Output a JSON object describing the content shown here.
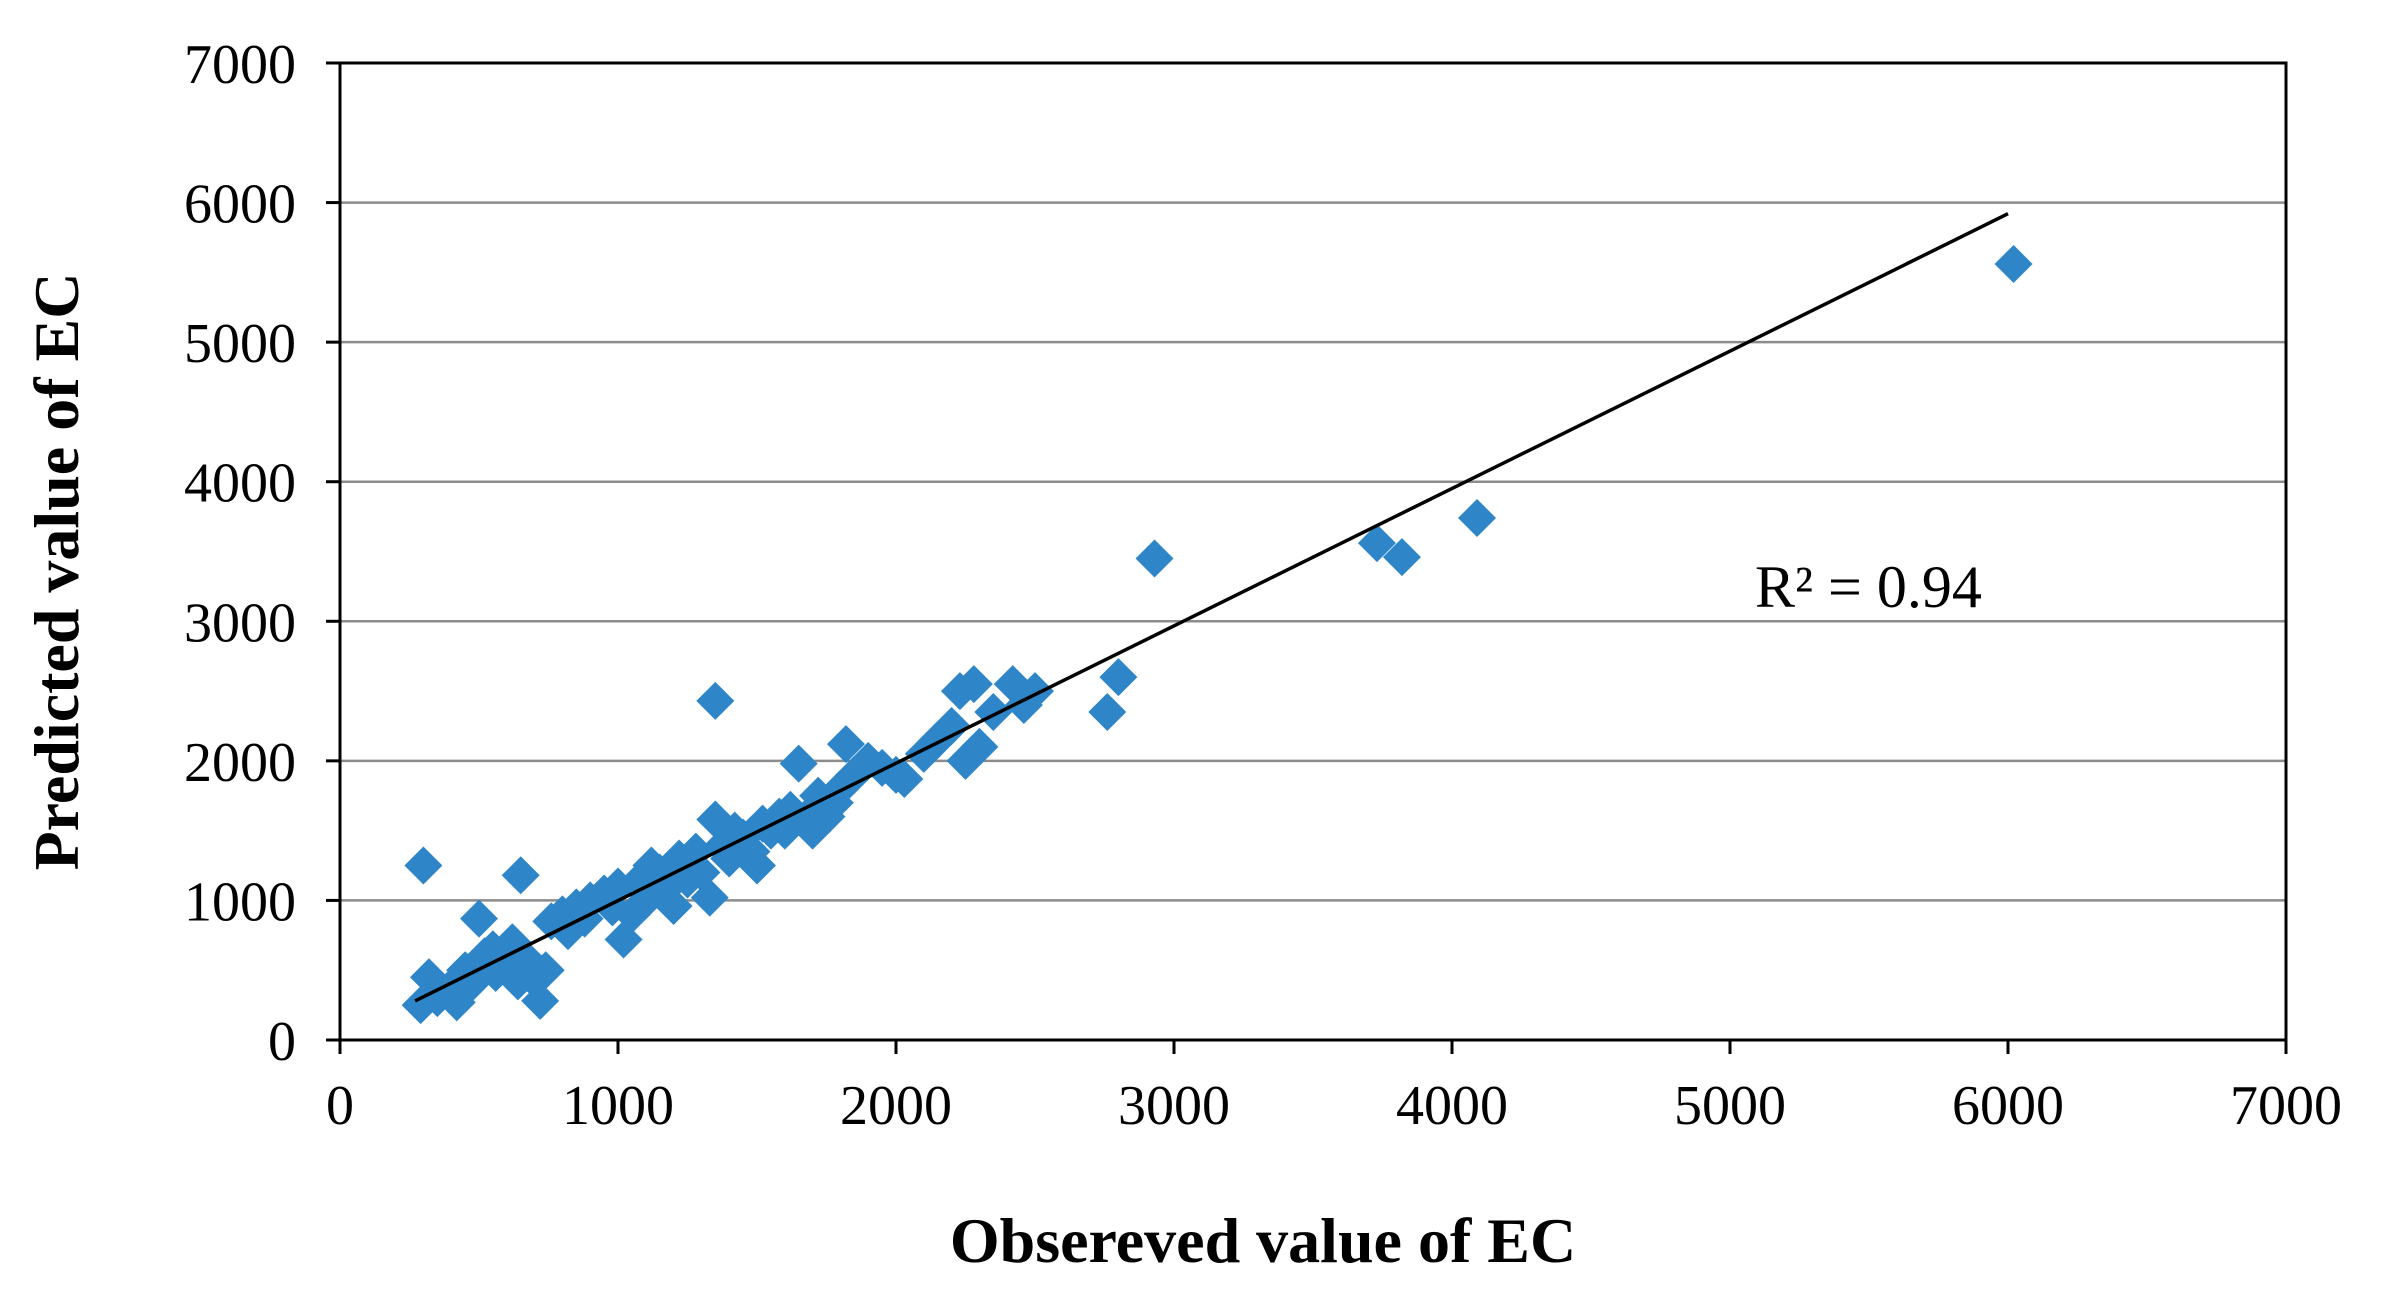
{
  "chart_data": {
    "type": "scatter",
    "title": "",
    "xlabel": "Obsereved value of EC",
    "ylabel": "Predicted value of EC",
    "xlim": [
      0,
      7000
    ],
    "ylim": [
      0,
      7000
    ],
    "xticks": [
      0,
      1000,
      2000,
      3000,
      4000,
      5000,
      6000,
      7000
    ],
    "yticks": [
      0,
      1000,
      2000,
      3000,
      4000,
      5000,
      6000,
      7000
    ],
    "grid": "horizontal",
    "legend": "none",
    "annotation": "R² = 0.94",
    "marker_color": "#2E86C8",
    "line_color": "#000000",
    "trendline": {
      "x": [
        270,
        6000
      ],
      "y": [
        280,
        5920
      ]
    },
    "series": [
      {
        "name": "EC",
        "points": [
          [
            300,
            1250
          ],
          [
            650,
            1180
          ],
          [
            1350,
            2430
          ],
          [
            290,
            250
          ],
          [
            320,
            450
          ],
          [
            350,
            300
          ],
          [
            400,
            380
          ],
          [
            420,
            270
          ],
          [
            450,
            500
          ],
          [
            480,
            420
          ],
          [
            500,
            870
          ],
          [
            520,
            600
          ],
          [
            550,
            650
          ],
          [
            560,
            480
          ],
          [
            600,
            550
          ],
          [
            620,
            700
          ],
          [
            640,
            420
          ],
          [
            660,
            600
          ],
          [
            690,
            450
          ],
          [
            720,
            280
          ],
          [
            740,
            500
          ],
          [
            760,
            850
          ],
          [
            800,
            900
          ],
          [
            820,
            780
          ],
          [
            850,
            950
          ],
          [
            880,
            870
          ],
          [
            900,
            1000
          ],
          [
            950,
            1050
          ],
          [
            980,
            950
          ],
          [
            1000,
            1100
          ],
          [
            1020,
            720
          ],
          [
            1050,
            900
          ],
          [
            1080,
            1150
          ],
          [
            1100,
            1000
          ],
          [
            1120,
            1250
          ],
          [
            1150,
            1200
          ],
          [
            1180,
            1100
          ],
          [
            1200,
            960
          ],
          [
            1220,
            1300
          ],
          [
            1250,
            1150
          ],
          [
            1280,
            1350
          ],
          [
            1300,
            1200
          ],
          [
            1330,
            1020
          ],
          [
            1350,
            1580
          ],
          [
            1380,
            1400
          ],
          [
            1400,
            1300
          ],
          [
            1420,
            1500
          ],
          [
            1450,
            1450
          ],
          [
            1480,
            1350
          ],
          [
            1500,
            1250
          ],
          [
            1520,
            1550
          ],
          [
            1550,
            1500
          ],
          [
            1580,
            1600
          ],
          [
            1600,
            1500
          ],
          [
            1620,
            1650
          ],
          [
            1650,
            1980
          ],
          [
            1680,
            1600
          ],
          [
            1700,
            1500
          ],
          [
            1720,
            1750
          ],
          [
            1750,
            1600
          ],
          [
            1780,
            1700
          ],
          [
            1800,
            1800
          ],
          [
            1820,
            2120
          ],
          [
            1850,
            1900
          ],
          [
            1900,
            2000
          ],
          [
            1950,
            1950
          ],
          [
            2000,
            1900
          ],
          [
            2030,
            1870
          ],
          [
            2100,
            2050
          ],
          [
            2150,
            2150
          ],
          [
            2200,
            2250
          ],
          [
            2230,
            2500
          ],
          [
            2250,
            2000
          ],
          [
            2280,
            2550
          ],
          [
            2300,
            2100
          ],
          [
            2350,
            2350
          ],
          [
            2420,
            2550
          ],
          [
            2460,
            2400
          ],
          [
            2500,
            2500
          ],
          [
            2760,
            2350
          ],
          [
            2800,
            2600
          ],
          [
            2930,
            3450
          ],
          [
            3730,
            3560
          ],
          [
            3820,
            3460
          ],
          [
            4090,
            3740
          ],
          [
            6020,
            5560
          ]
        ]
      }
    ]
  }
}
